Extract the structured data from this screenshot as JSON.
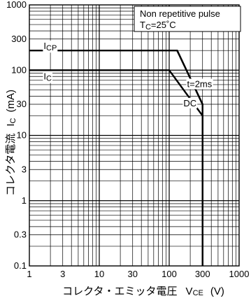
{
  "chart_data": {
    "type": "line",
    "xscale": "log",
    "yscale": "log",
    "xlim": [
      1,
      1000
    ],
    "ylim": [
      0.1,
      1000
    ],
    "xticks": [
      1,
      3,
      10,
      30,
      100,
      300,
      1000
    ],
    "xtick_labels": [
      "1",
      "3",
      "10",
      "30",
      "100",
      "300",
      "1000"
    ],
    "yticks": [
      0.1,
      0.3,
      1,
      3,
      10,
      30,
      100,
      300,
      1000
    ],
    "ytick_labels": [
      "0.1",
      "0.3",
      "1",
      "3",
      "10",
      "30",
      "100",
      "300",
      "1000"
    ],
    "grid": true,
    "xlabel": "コレクタ・エミッタ電圧",
    "xlabel_symbol": "V",
    "xlabel_symbol_sub": "CE",
    "xlabel_unit": "(V)",
    "ylabel": "コレクタ電流",
    "ylabel_symbol": "I",
    "ylabel_symbol_sub": "C",
    "ylabel_unit": "(mA)",
    "annotation_lines": [
      "Non repetitive pulse",
      "T",
      "C",
      "=25˚C"
    ],
    "labels": {
      "icp_main": "I",
      "icp_sub": "CP",
      "ic_main": "I",
      "ic_sub": "C",
      "pulse": "t=2ms",
      "dc": "DC"
    },
    "series": [
      {
        "name": "ICP",
        "x": [
          1,
          130,
          300,
          300
        ],
        "y": [
          200,
          200,
          30,
          0.1
        ]
      },
      {
        "name": "t=2ms",
        "x": [
          130,
          300
        ],
        "y": [
          200,
          30
        ]
      },
      {
        "name": "DC",
        "x": [
          1,
          100,
          300,
          300
        ],
        "y": [
          100,
          100,
          20,
          0.1
        ]
      }
    ],
    "label_positions_data": {
      "icp": [
        1.6,
        210
      ],
      "ic": [
        1.6,
        72
      ],
      "pulse": [
        180,
        55
      ],
      "dc": [
        160,
        28
      ]
    }
  }
}
